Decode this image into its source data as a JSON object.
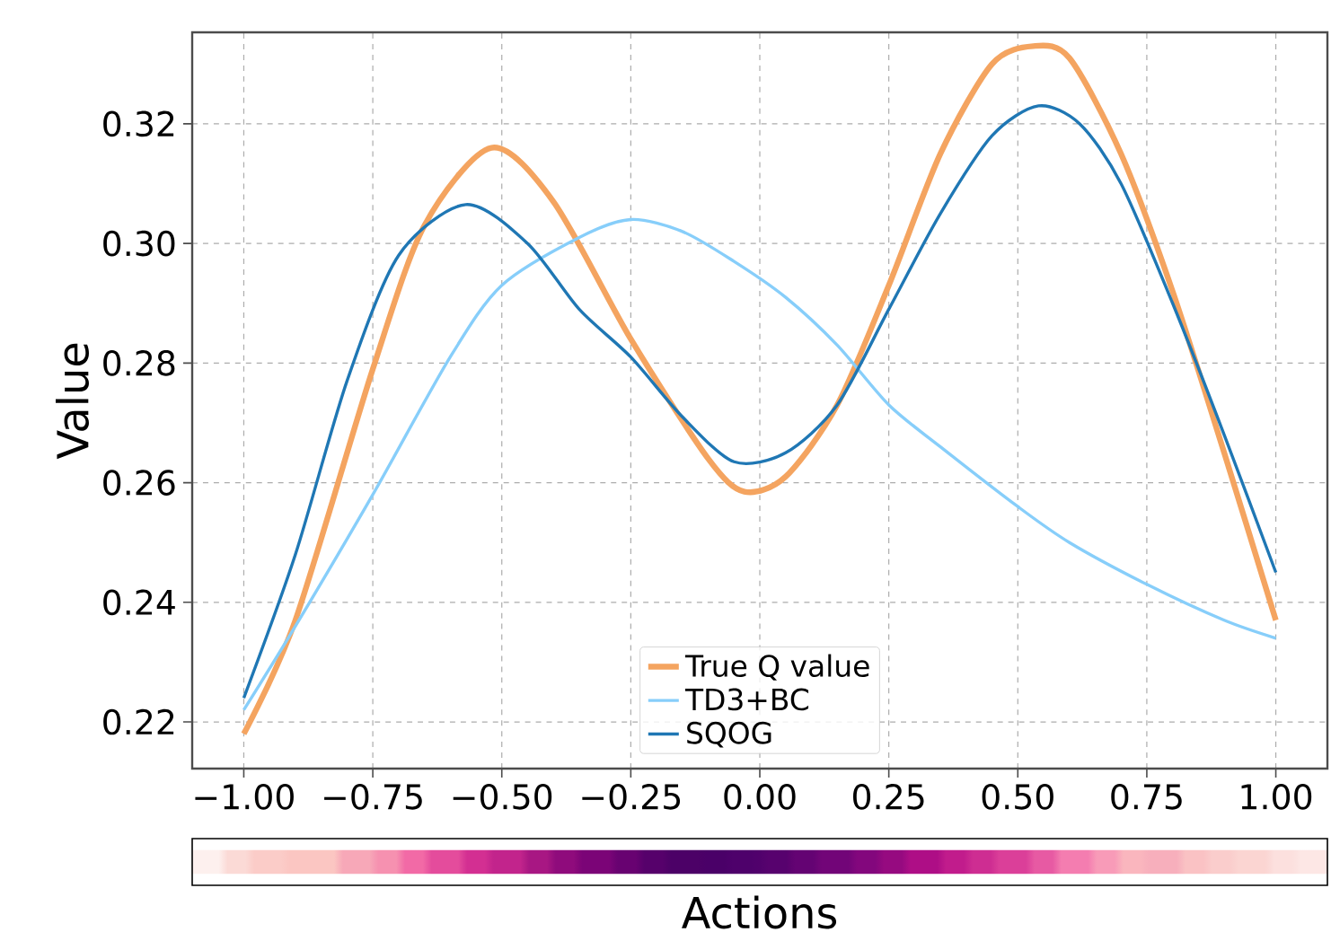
{
  "chart_data": {
    "type": "line",
    "xlabel": "Actions",
    "ylabel": "Value",
    "xlim": [
      -1.1,
      1.1
    ],
    "ylim": [
      0.2122,
      0.3353
    ],
    "xticks": [
      {
        "value": -1,
        "label": "−1.00"
      },
      {
        "value": -0.75,
        "label": "−0.75"
      },
      {
        "value": -0.5,
        "label": "−0.50"
      },
      {
        "value": -0.25,
        "label": "−0.25"
      },
      {
        "value": 0,
        "label": "0.00"
      },
      {
        "value": 0.25,
        "label": "0.25"
      },
      {
        "value": 0.5,
        "label": "0.50"
      },
      {
        "value": 0.75,
        "label": "0.75"
      },
      {
        "value": 1,
        "label": "1.00"
      }
    ],
    "yticks": [
      {
        "value": 0.22,
        "label": "0.22"
      },
      {
        "value": 0.24,
        "label": "0.24"
      },
      {
        "value": 0.26,
        "label": "0.26"
      },
      {
        "value": 0.28,
        "label": "0.28"
      },
      {
        "value": 0.3,
        "label": "0.30"
      },
      {
        "value": 0.32,
        "label": "0.32"
      }
    ],
    "grid": true,
    "legend": "bottom",
    "line_style": "solid",
    "marker": "none",
    "series": [
      {
        "name": "True Q value",
        "color": "#f4a460",
        "x": [
          -1,
          -0.9,
          -0.75,
          -0.65,
          -0.52,
          -0.4,
          -0.25,
          -0.1,
          -0.03,
          0.05,
          0.15,
          0.25,
          0.35,
          0.45,
          0.53,
          0.6,
          0.7,
          0.8,
          0.9,
          1.0
        ],
        "values": [
          0.218,
          0.237,
          0.279,
          0.303,
          0.316,
          0.307,
          0.284,
          0.264,
          0.2585,
          0.261,
          0.273,
          0.293,
          0.315,
          0.33,
          0.333,
          0.331,
          0.315,
          0.292,
          0.265,
          0.237
        ]
      },
      {
        "name": "TD3+BC",
        "color": "#87cefa",
        "x": [
          -1,
          -0.9,
          -0.75,
          -0.6,
          -0.5,
          -0.35,
          -0.25,
          -0.15,
          -0.05,
          0.05,
          0.15,
          0.25,
          0.35,
          0.5,
          0.6,
          0.75,
          0.9,
          1.0
        ],
        "values": [
          0.222,
          0.236,
          0.258,
          0.281,
          0.293,
          0.301,
          0.304,
          0.302,
          0.297,
          0.291,
          0.283,
          0.273,
          0.266,
          0.256,
          0.25,
          0.243,
          0.237,
          0.234
        ]
      },
      {
        "name": "SQOG",
        "color": "#1f77b4",
        "x": [
          -1,
          -0.9,
          -0.8,
          -0.7,
          -0.57,
          -0.45,
          -0.35,
          -0.25,
          -0.15,
          -0.05,
          0.05,
          0.15,
          0.25,
          0.35,
          0.45,
          0.54,
          0.62,
          0.7,
          0.8,
          0.9,
          1.0
        ],
        "values": [
          0.224,
          0.248,
          0.277,
          0.298,
          0.3065,
          0.3,
          0.289,
          0.281,
          0.271,
          0.2635,
          0.265,
          0.273,
          0.289,
          0.305,
          0.318,
          0.323,
          0.32,
          0.31,
          0.29,
          0.268,
          0.245
        ]
      }
    ]
  }
}
